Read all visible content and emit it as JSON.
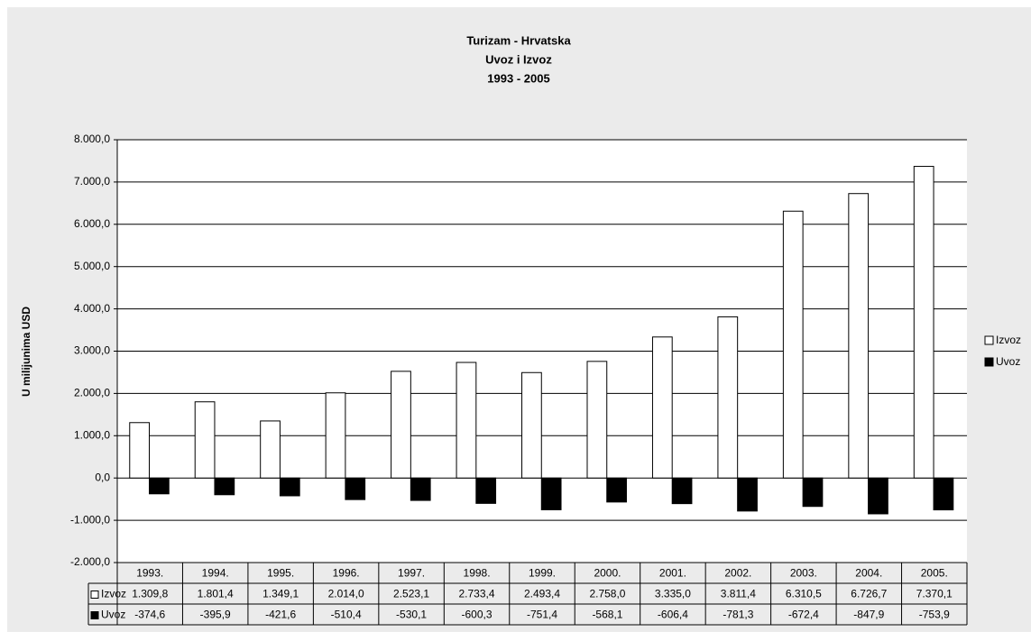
{
  "chart_data": {
    "type": "bar",
    "title": [
      "Turizam - Hrvatska",
      "Uvoz i Izvoz",
      "1993 - 2005"
    ],
    "y_label": "U milijunima USD",
    "categories": [
      "1993.",
      "1994.",
      "1995.",
      "1996.",
      "1997.",
      "1998.",
      "1999.",
      "2000.",
      "2001.",
      "2002.",
      "2003.",
      "2004.",
      "2005."
    ],
    "series": [
      {
        "name": "Izvoz",
        "color": "#ffffff",
        "values": [
          1309.8,
          1801.4,
          1349.1,
          2014.0,
          2523.1,
          2733.4,
          2493.4,
          2758.0,
          3335.0,
          3811.4,
          6310.5,
          6726.7,
          7370.1
        ],
        "value_labels": [
          "1.309,8",
          "1.801,4",
          "1.349,1",
          "2.014,0",
          "2.523,1",
          "2.733,4",
          "2.493,4",
          "2.758,0",
          "3.335,0",
          "3.811,4",
          "6.310,5",
          "6.726,7",
          "7.370,1"
        ]
      },
      {
        "name": "Uvoz",
        "color": "#000000",
        "values": [
          -374.6,
          -395.9,
          -421.6,
          -510.4,
          -530.1,
          -600.3,
          -751.4,
          -568.1,
          -606.4,
          -781.3,
          -672.4,
          -847.9,
          -753.9
        ],
        "value_labels": [
          "-374,6",
          "-395,9",
          "-421,6",
          "-510,4",
          "-530,1",
          "-600,3",
          "-751,4",
          "-568,1",
          "-606,4",
          "-781,3",
          "-672,4",
          "-847,9",
          "-753,9"
        ]
      }
    ],
    "ylim": [
      -2000,
      8000
    ],
    "yticks": [
      {
        "value": -2000,
        "label": "-2.000,0"
      },
      {
        "value": -1000,
        "label": "-1.000,0"
      },
      {
        "value": 0,
        "label": "0,0"
      },
      {
        "value": 1000,
        "label": "1.000,0"
      },
      {
        "value": 2000,
        "label": "2.000,0"
      },
      {
        "value": 3000,
        "label": "3.000,0"
      },
      {
        "value": 4000,
        "label": "4.000,0"
      },
      {
        "value": 5000,
        "label": "5.000,0"
      },
      {
        "value": 6000,
        "label": "6.000,0"
      },
      {
        "value": 7000,
        "label": "7.000,0"
      },
      {
        "value": 8000,
        "label": "8.000,0"
      }
    ],
    "grid": true,
    "legend": "right"
  }
}
